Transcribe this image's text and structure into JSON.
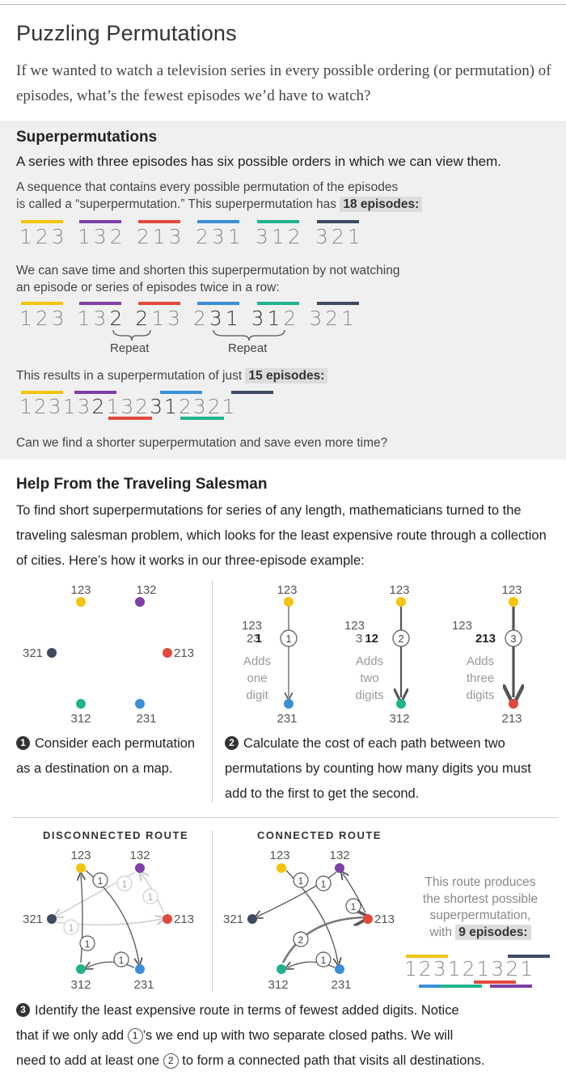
{
  "header": {
    "title": "Puzzling Permutations",
    "intro": "If we wanted to watch a television series in every possible ordering (or permutation) of episodes, what’s the fewest episodes we’d have to watch?"
  },
  "superperms": {
    "title": "Superpermutations",
    "lead": "A series with three episodes has six possible orders in which we can view them.",
    "p1_line1": "A sequence that contains every possible permutation of the episodes",
    "p1_line2": "is called a “superpermutation.” This superpermutation has",
    "p1_badge": "18 episodes:",
    "p2_line1": "We can save time and shorten this superpermutation by not watching",
    "p2_line2": "an episode or series of episodes twice in a row:",
    "repeat_label": "Repeat",
    "p3_text": "This results in a superpermutation of just",
    "p3_badge": "15 episodes:",
    "question": "Can we find a shorter superpermutation and save even more time?",
    "row1": [
      "123",
      "132",
      "213",
      "231",
      "312",
      "321"
    ],
    "row2_a": "123 13",
    "row2_b": "2 2",
    "row2_c": "13 2",
    "row2_d": "31 31",
    "row2_e": "2 321",
    "row3_a": "12313",
    "row3_b": "2",
    "row3_c": "13",
    "row3_d": "2",
    "row3_e": "31",
    "row3_f": "2321"
  },
  "salesman": {
    "title": "Help From the Traveling Salesman",
    "body": "To find short superpermutations for series of any length, mathematicians turned to the traveling salesman problem, which looks for the least expensive route through a collection of cities. Here’s how it works in our three-episode example:",
    "step1_num": "1",
    "step1": "Consider each permutation as a destination on a map.",
    "step2_num": "2",
    "step2": "Calculate the cost of each path between two permutations by counting how many digits you must add to the first to get the second.",
    "map_nodes": [
      "123",
      "132",
      "321",
      "213",
      "312",
      "231"
    ],
    "path1": {
      "from": "123",
      "upper": "123",
      "lower_prefix": "23",
      "lower_bold": "1",
      "cost": "1",
      "desc": [
        "Adds",
        "one",
        "digit"
      ],
      "to": "231"
    },
    "path2": {
      "from": "123",
      "upper": "123",
      "lower_prefix": "3",
      "lower_bold": "12",
      "cost": "2",
      "desc": [
        "Adds",
        "two",
        "digits"
      ],
      "to": "312"
    },
    "path3": {
      "from": "123",
      "upper": "123",
      "lower_bold": "213",
      "cost": "3",
      "desc": [
        "Adds",
        "three",
        "digits"
      ],
      "to": "213"
    }
  },
  "routes": {
    "disconnected_title": "DISCONNECTED ROUTE",
    "connected_title": "CONNECTED ROUTE",
    "edge_one": "1",
    "edge_two": "2",
    "note_line1": "This route produces",
    "note_line2": "the shortest possible",
    "note_line3": "superpermutation,",
    "note_line4": "with",
    "note_badge": "9 episodes:",
    "final_digits": "123121321",
    "step3_num": "3",
    "step3_a": "Identify the least expensive route in terms of fewest added digits. Notice",
    "step3_b1": "that if we only add",
    "step3_b2": "’s we end up with two separate closed paths. We will",
    "step3_c1": "need to add at least one",
    "step3_c2": "to form a connected path that visits all destinations."
  },
  "colors": {
    "p123": "#f2c40d",
    "p132": "#7e3fa6",
    "p213": "#e04a3c",
    "p231": "#3a8fd6",
    "p312": "#21b28f",
    "p321": "#3d4a60"
  }
}
